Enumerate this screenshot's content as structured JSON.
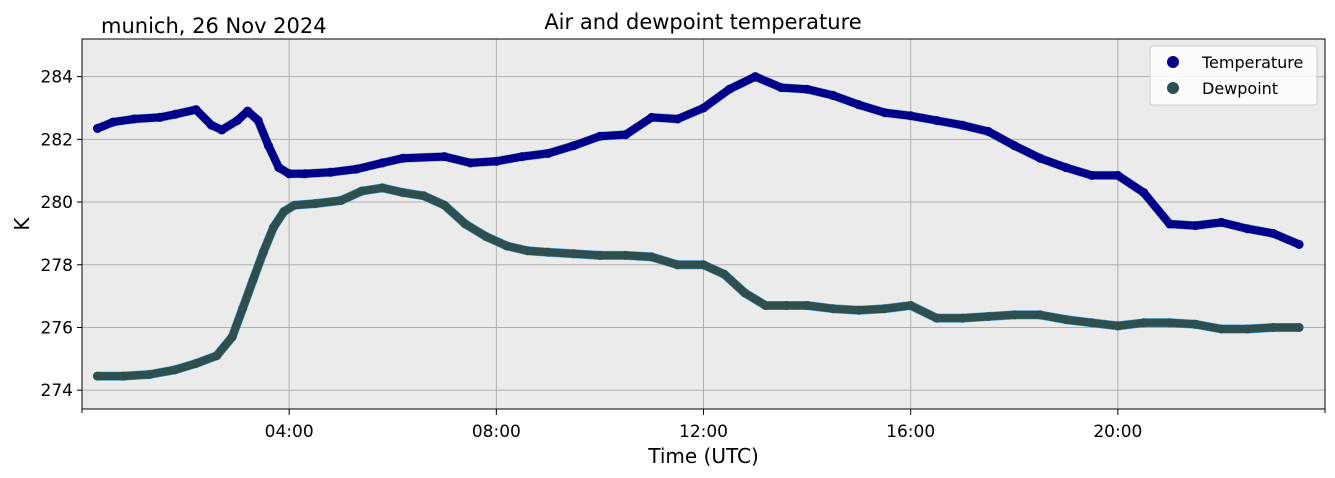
{
  "chart_data": {
    "type": "line",
    "title": "Air and dewpoint temperature",
    "subtitle": "munich, 26 Nov 2024",
    "xlabel": "Time (UTC)",
    "ylabel": "K",
    "xlim": [
      0,
      24
    ],
    "ylim": [
      273.4,
      285.2
    ],
    "x_ticks": [
      {
        "value": 4,
        "label": "04:00"
      },
      {
        "value": 8,
        "label": "08:00"
      },
      {
        "value": 12,
        "label": "12:00"
      },
      {
        "value": 16,
        "label": "16:00"
      },
      {
        "value": 20,
        "label": "20:00"
      }
    ],
    "x_minor_ticks": [
      0,
      24
    ],
    "y_ticks": [
      274,
      276,
      278,
      280,
      282,
      284
    ],
    "grid": true,
    "legend_position": "top-right",
    "colors": {
      "temperature": "#00008b",
      "temperature_raw": "#7fb0b0",
      "dewpoint": "#2f4f4f",
      "dewpoint_raw": "#1e9be9",
      "plot_bg": "#ebebeb",
      "grid": "#b0b0b0"
    },
    "series": [
      {
        "name": "Temperature",
        "x": [
          0.3,
          0.6,
          1.0,
          1.5,
          1.8,
          2.2,
          2.5,
          2.7,
          3.0,
          3.2,
          3.4,
          3.6,
          3.8,
          4.0,
          4.3,
          4.8,
          5.3,
          5.8,
          6.2,
          7.0,
          7.5,
          8.0,
          8.5,
          9.0,
          9.5,
          10.0,
          10.5,
          11.0,
          11.5,
          12.0,
          12.5,
          13.0,
          13.5,
          14.0,
          14.5,
          15.0,
          15.5,
          16.0,
          16.5,
          17.0,
          17.5,
          18.0,
          18.5,
          19.0,
          19.5,
          20.0,
          20.5,
          21.0,
          21.5,
          22.0,
          22.5,
          23.0,
          23.5
        ],
        "values": [
          282.35,
          282.55,
          282.65,
          282.7,
          282.8,
          282.95,
          282.45,
          282.3,
          282.6,
          282.9,
          282.6,
          281.8,
          281.1,
          280.9,
          280.9,
          280.95,
          281.05,
          281.25,
          281.4,
          281.45,
          281.25,
          281.3,
          281.45,
          281.55,
          281.8,
          282.1,
          282.15,
          282.7,
          282.65,
          283.0,
          283.6,
          284.0,
          283.65,
          283.6,
          283.4,
          283.1,
          282.85,
          282.75,
          282.6,
          282.45,
          282.25,
          281.8,
          281.4,
          281.1,
          280.85,
          280.85,
          280.3,
          279.3,
          279.25,
          279.35,
          279.15,
          279.0,
          278.65
        ]
      },
      {
        "name": "Dewpoint",
        "x": [
          0.3,
          0.8,
          1.3,
          1.8,
          2.2,
          2.6,
          2.9,
          3.1,
          3.3,
          3.5,
          3.7,
          3.9,
          4.1,
          4.5,
          5.0,
          5.4,
          5.8,
          6.2,
          6.6,
          7.0,
          7.4,
          7.8,
          8.2,
          8.6,
          9.0,
          9.5,
          10.0,
          10.5,
          11.0,
          11.5,
          12.0,
          12.4,
          12.8,
          13.2,
          13.6,
          14.0,
          14.5,
          15.0,
          15.5,
          16.0,
          16.5,
          17.0,
          17.5,
          18.0,
          18.5,
          19.0,
          19.5,
          20.0,
          20.5,
          21.0,
          21.5,
          22.0,
          22.5,
          23.0,
          23.5
        ],
        "values": [
          274.45,
          274.45,
          274.5,
          274.65,
          274.85,
          275.1,
          275.7,
          276.6,
          277.5,
          278.4,
          279.2,
          279.7,
          279.9,
          279.95,
          280.05,
          280.35,
          280.45,
          280.3,
          280.2,
          279.9,
          279.3,
          278.9,
          278.6,
          278.45,
          278.4,
          278.35,
          278.3,
          278.3,
          278.25,
          278.0,
          278.0,
          277.7,
          277.1,
          276.7,
          276.7,
          276.7,
          276.6,
          276.55,
          276.6,
          276.7,
          276.3,
          276.3,
          276.35,
          276.4,
          276.4,
          276.25,
          276.15,
          276.05,
          276.15,
          276.15,
          276.1,
          275.95,
          275.95,
          276.0,
          276.0
        ]
      }
    ]
  }
}
